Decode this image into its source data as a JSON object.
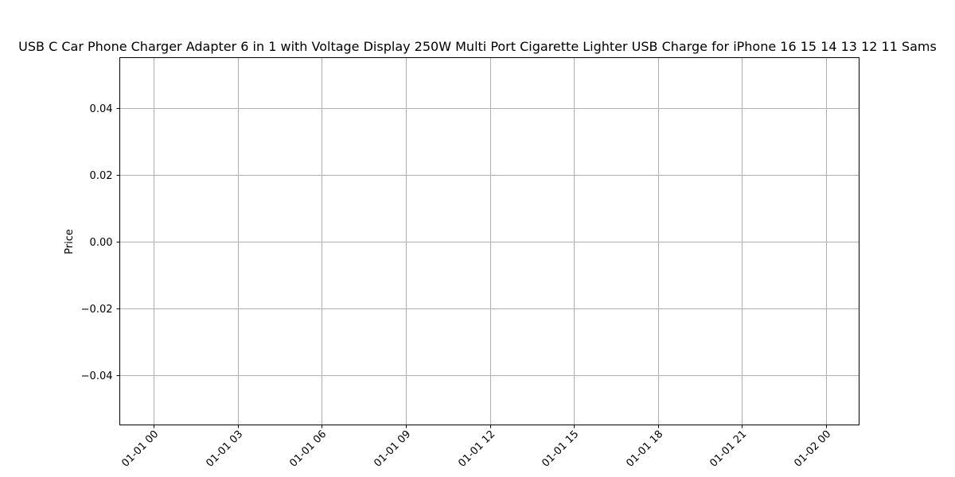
{
  "chart_data": {
    "type": "line",
    "title": "USB C Car Phone Charger Adapter 6 in 1 with Voltage Display 250W Multi Port Cigarette Lighter USB Charge for iPhone 16 15 14 13 12 11 Sams",
    "xlabel": "",
    "ylabel": "Price",
    "x_ticks": [
      "01-01 00",
      "01-01 03",
      "01-01 06",
      "01-01 09",
      "01-01 12",
      "01-01 15",
      "01-01 18",
      "01-01 21",
      "01-02 00"
    ],
    "y_ticks": [
      "0.04",
      "0.02",
      "0.00",
      "−0.02",
      "−0.04"
    ],
    "y_tick_values": [
      0.04,
      0.02,
      0.0,
      -0.02,
      -0.04
    ],
    "ylim": [
      -0.055,
      0.055
    ],
    "grid": true,
    "series": []
  }
}
